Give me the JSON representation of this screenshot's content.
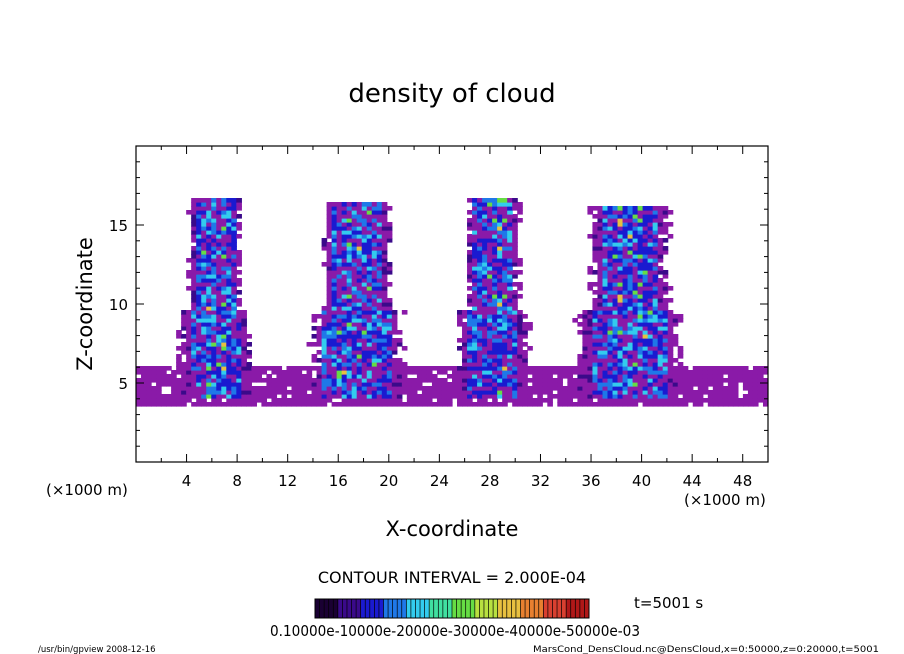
{
  "chart_data": {
    "type": "heatmap",
    "title": "density of cloud",
    "xlabel": "X-coordinate",
    "ylabel": "Z-coordinate",
    "x_unit": "(×1000 m)",
    "y_unit": "(×1000 m)",
    "xlim": [
      0,
      50
    ],
    "ylim": [
      0,
      20
    ],
    "x_ticks": [
      4,
      8,
      12,
      16,
      20,
      24,
      28,
      32,
      36,
      40,
      44,
      48
    ],
    "y_ticks": [
      5,
      10,
      15
    ],
    "grid": false,
    "contour_interval_text": "CONTOUR INTERVAL = 2.000E-04",
    "time_text": "t=5001 s",
    "colorbar_labels_text": "0.10000e-10000e-20000e-30000e-40000e-50000e-03",
    "colorbar_colors": [
      "#1a0033",
      "#3a0a8a",
      "#1a1ad0",
      "#1f78e8",
      "#33ccee",
      "#40e0a0",
      "#66dd44",
      "#b8e040",
      "#e8c040",
      "#e88030",
      "#d84030",
      "#b01818"
    ],
    "background_color": "#8a1aa8",
    "cloud_columns": [
      {
        "x_range": [
          3.5,
          9
        ],
        "base_z": 4,
        "top_z": 16.8
      },
      {
        "x_range": [
          14,
          21
        ],
        "base_z": 4,
        "top_z": 16.5
      },
      {
        "x_range": [
          25.5,
          31
        ],
        "base_z": 4,
        "top_z": 16.8
      },
      {
        "x_range": [
          35,
          43
        ],
        "base_z": 4,
        "top_z": 16.3
      }
    ],
    "low_layer_z": [
      3.5,
      6
    ]
  },
  "footer": {
    "left": "/usr/bin/gpview   2008-12-16",
    "right": "MarsCond_DensCloud.nc@DensCloud,x=0:50000,z=0:20000,t=5001"
  }
}
